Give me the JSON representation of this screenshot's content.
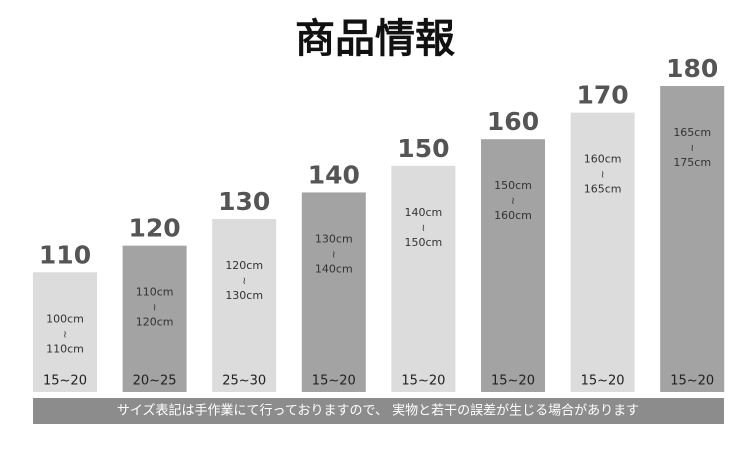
{
  "chart_data": {
    "type": "bar",
    "title": "商品情報",
    "values": [
      110,
      120,
      130,
      140,
      150,
      160,
      170,
      180
    ],
    "colors": [
      "#dcdcdc",
      "#a3a3a3",
      "#dcdcdc",
      "#a3a3a3",
      "#dcdcdc",
      "#a3a3a3",
      "#dcdcdc",
      "#a3a3a3"
    ],
    "ranges": [
      {
        "from": "100cm",
        "to": "110cm"
      },
      {
        "from": "110cm",
        "to": "120cm"
      },
      {
        "from": "120cm",
        "to": "130cm"
      },
      {
        "from": "130cm",
        "to": "140cm"
      },
      {
        "from": "140cm",
        "to": "150cm"
      },
      {
        "from": "150cm",
        "to": "160cm"
      },
      {
        "from": "160cm",
        "to": "165cm"
      },
      {
        "from": "165cm",
        "to": "175cm"
      }
    ],
    "range_separator": "≀",
    "bottom_labels": [
      "15~20",
      "20~25",
      "25~30",
      "15~20",
      "15~20",
      "15~20",
      "15~20",
      "15~20"
    ],
    "ylim": [
      65,
      180
    ],
    "note": "サイズ表記は手作業にて行っておりますので、 実物と若干の誤差が生じる場合があります"
  }
}
